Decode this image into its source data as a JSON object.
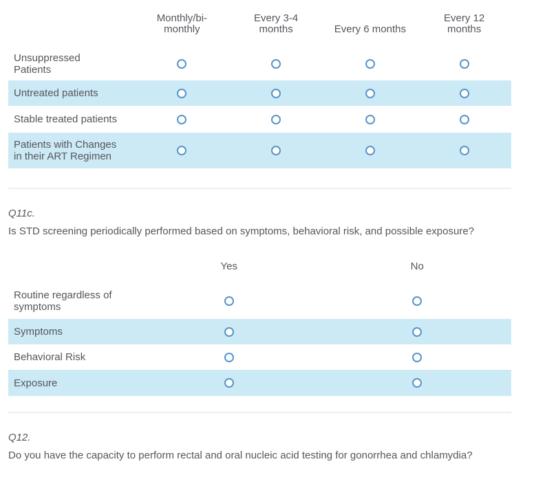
{
  "colors": {
    "accent_blue": "#5795C9",
    "row_highlight": "#CCE9F6",
    "text": "#55565B",
    "divider": "#EFEFEF",
    "page_bg": "#FFFFFF"
  },
  "frequency_matrix": {
    "columns": [
      "Monthly/bi-\nmonthly",
      "Every 3-4\nmonths",
      "Every 6 months",
      "Every 12\nmonths"
    ],
    "rows": [
      {
        "label": "Unsuppressed\nPatients",
        "highlighted": false
      },
      {
        "label": "Untreated patients",
        "highlighted": true
      },
      {
        "label": "Stable treated patients",
        "highlighted": false
      },
      {
        "label": "Patients with Changes\nin their ART Regimen",
        "highlighted": true
      }
    ]
  },
  "q11c": {
    "number": "Q11c.",
    "question": "Is STD screening periodically performed based on symptoms, behavioral risk, and possible exposure?",
    "columns": [
      "Yes",
      "No"
    ],
    "rows": [
      {
        "label": "Routine regardless of\nsymptoms",
        "highlighted": false
      },
      {
        "label": "Symptoms",
        "highlighted": true
      },
      {
        "label": "Behavioral Risk",
        "highlighted": false
      },
      {
        "label": "Exposure",
        "highlighted": true
      }
    ]
  },
  "q12": {
    "number": "Q12.",
    "question": "Do you have the capacity to perform rectal and oral nucleic acid testing for gonorrhea and chlamydia?"
  }
}
